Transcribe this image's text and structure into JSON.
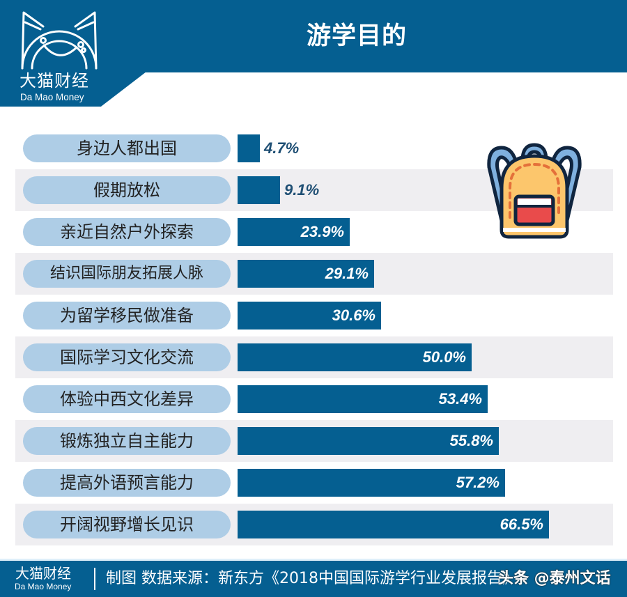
{
  "header": {
    "title": "游学目的",
    "logo_cn": "大猫财经",
    "logo_en": "Da Mao Money"
  },
  "colors": {
    "brand_blue": "#055f91",
    "pill_blue": "#aecde6",
    "stripe_gray": "#efeef1",
    "value_dark": "#1f4f74"
  },
  "icons": {
    "logo": "cat-face-logo-icon",
    "illustration": "backpack-icon"
  },
  "chart_data": {
    "type": "bar",
    "orientation": "horizontal",
    "title": "游学目的",
    "xlabel": "",
    "ylabel": "",
    "xlim": [
      0,
      70
    ],
    "grid": false,
    "legend": null,
    "categories": [
      "身边人都出国",
      "假期放松",
      "亲近自然户外探索",
      "结识国际朋友拓展人脉",
      "为留学移民做准备",
      "国际学习文化交流",
      "体验中西文化差异",
      "锻炼独立自主能力",
      "提高外语预言能力",
      "开阔视野增长见识"
    ],
    "values": [
      4.7,
      9.1,
      23.9,
      29.1,
      30.6,
      50.0,
      53.4,
      55.8,
      57.2,
      66.5
    ],
    "labels": [
      "4.7%",
      "9.1%",
      "23.9%",
      "29.1%",
      "30.6%",
      "50.0%",
      "53.4%",
      "55.8%",
      "57.2%",
      "66.5%"
    ],
    "unit": "%"
  },
  "footer": {
    "logo_cn": "大猫财经",
    "logo_en": "Da Mao Money",
    "source_text": "制图   数据来源：新东方《2018中国国际游学行业发展报告》",
    "watermark": "头条 @泰州文话"
  }
}
